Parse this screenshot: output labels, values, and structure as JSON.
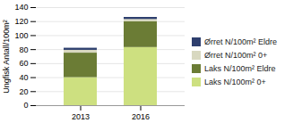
{
  "chart_data": {
    "type": "bar",
    "stacked": true,
    "categories": [
      "2013",
      "2016"
    ],
    "series": [
      {
        "name": "Laks N/100m² 0+",
        "color": "#cde080",
        "values": [
          40,
          83
        ]
      },
      {
        "name": "Laks N/100m² Eldre",
        "color": "#6b7c35",
        "values": [
          35,
          37
        ]
      },
      {
        "name": "Ørret N/100m² 0+",
        "color": "#d8d8c0",
        "values": [
          4,
          3
        ]
      },
      {
        "name": "Ørret N/100m² Eldre",
        "color": "#2e3f6e",
        "values": [
          3,
          3
        ]
      }
    ],
    "ylabel": "Ungfisk Antall/100m²",
    "ylim": [
      0,
      140
    ],
    "yticks": [
      0,
      20,
      40,
      60,
      80,
      100,
      120,
      140
    ],
    "grid": true,
    "legend": "right"
  }
}
